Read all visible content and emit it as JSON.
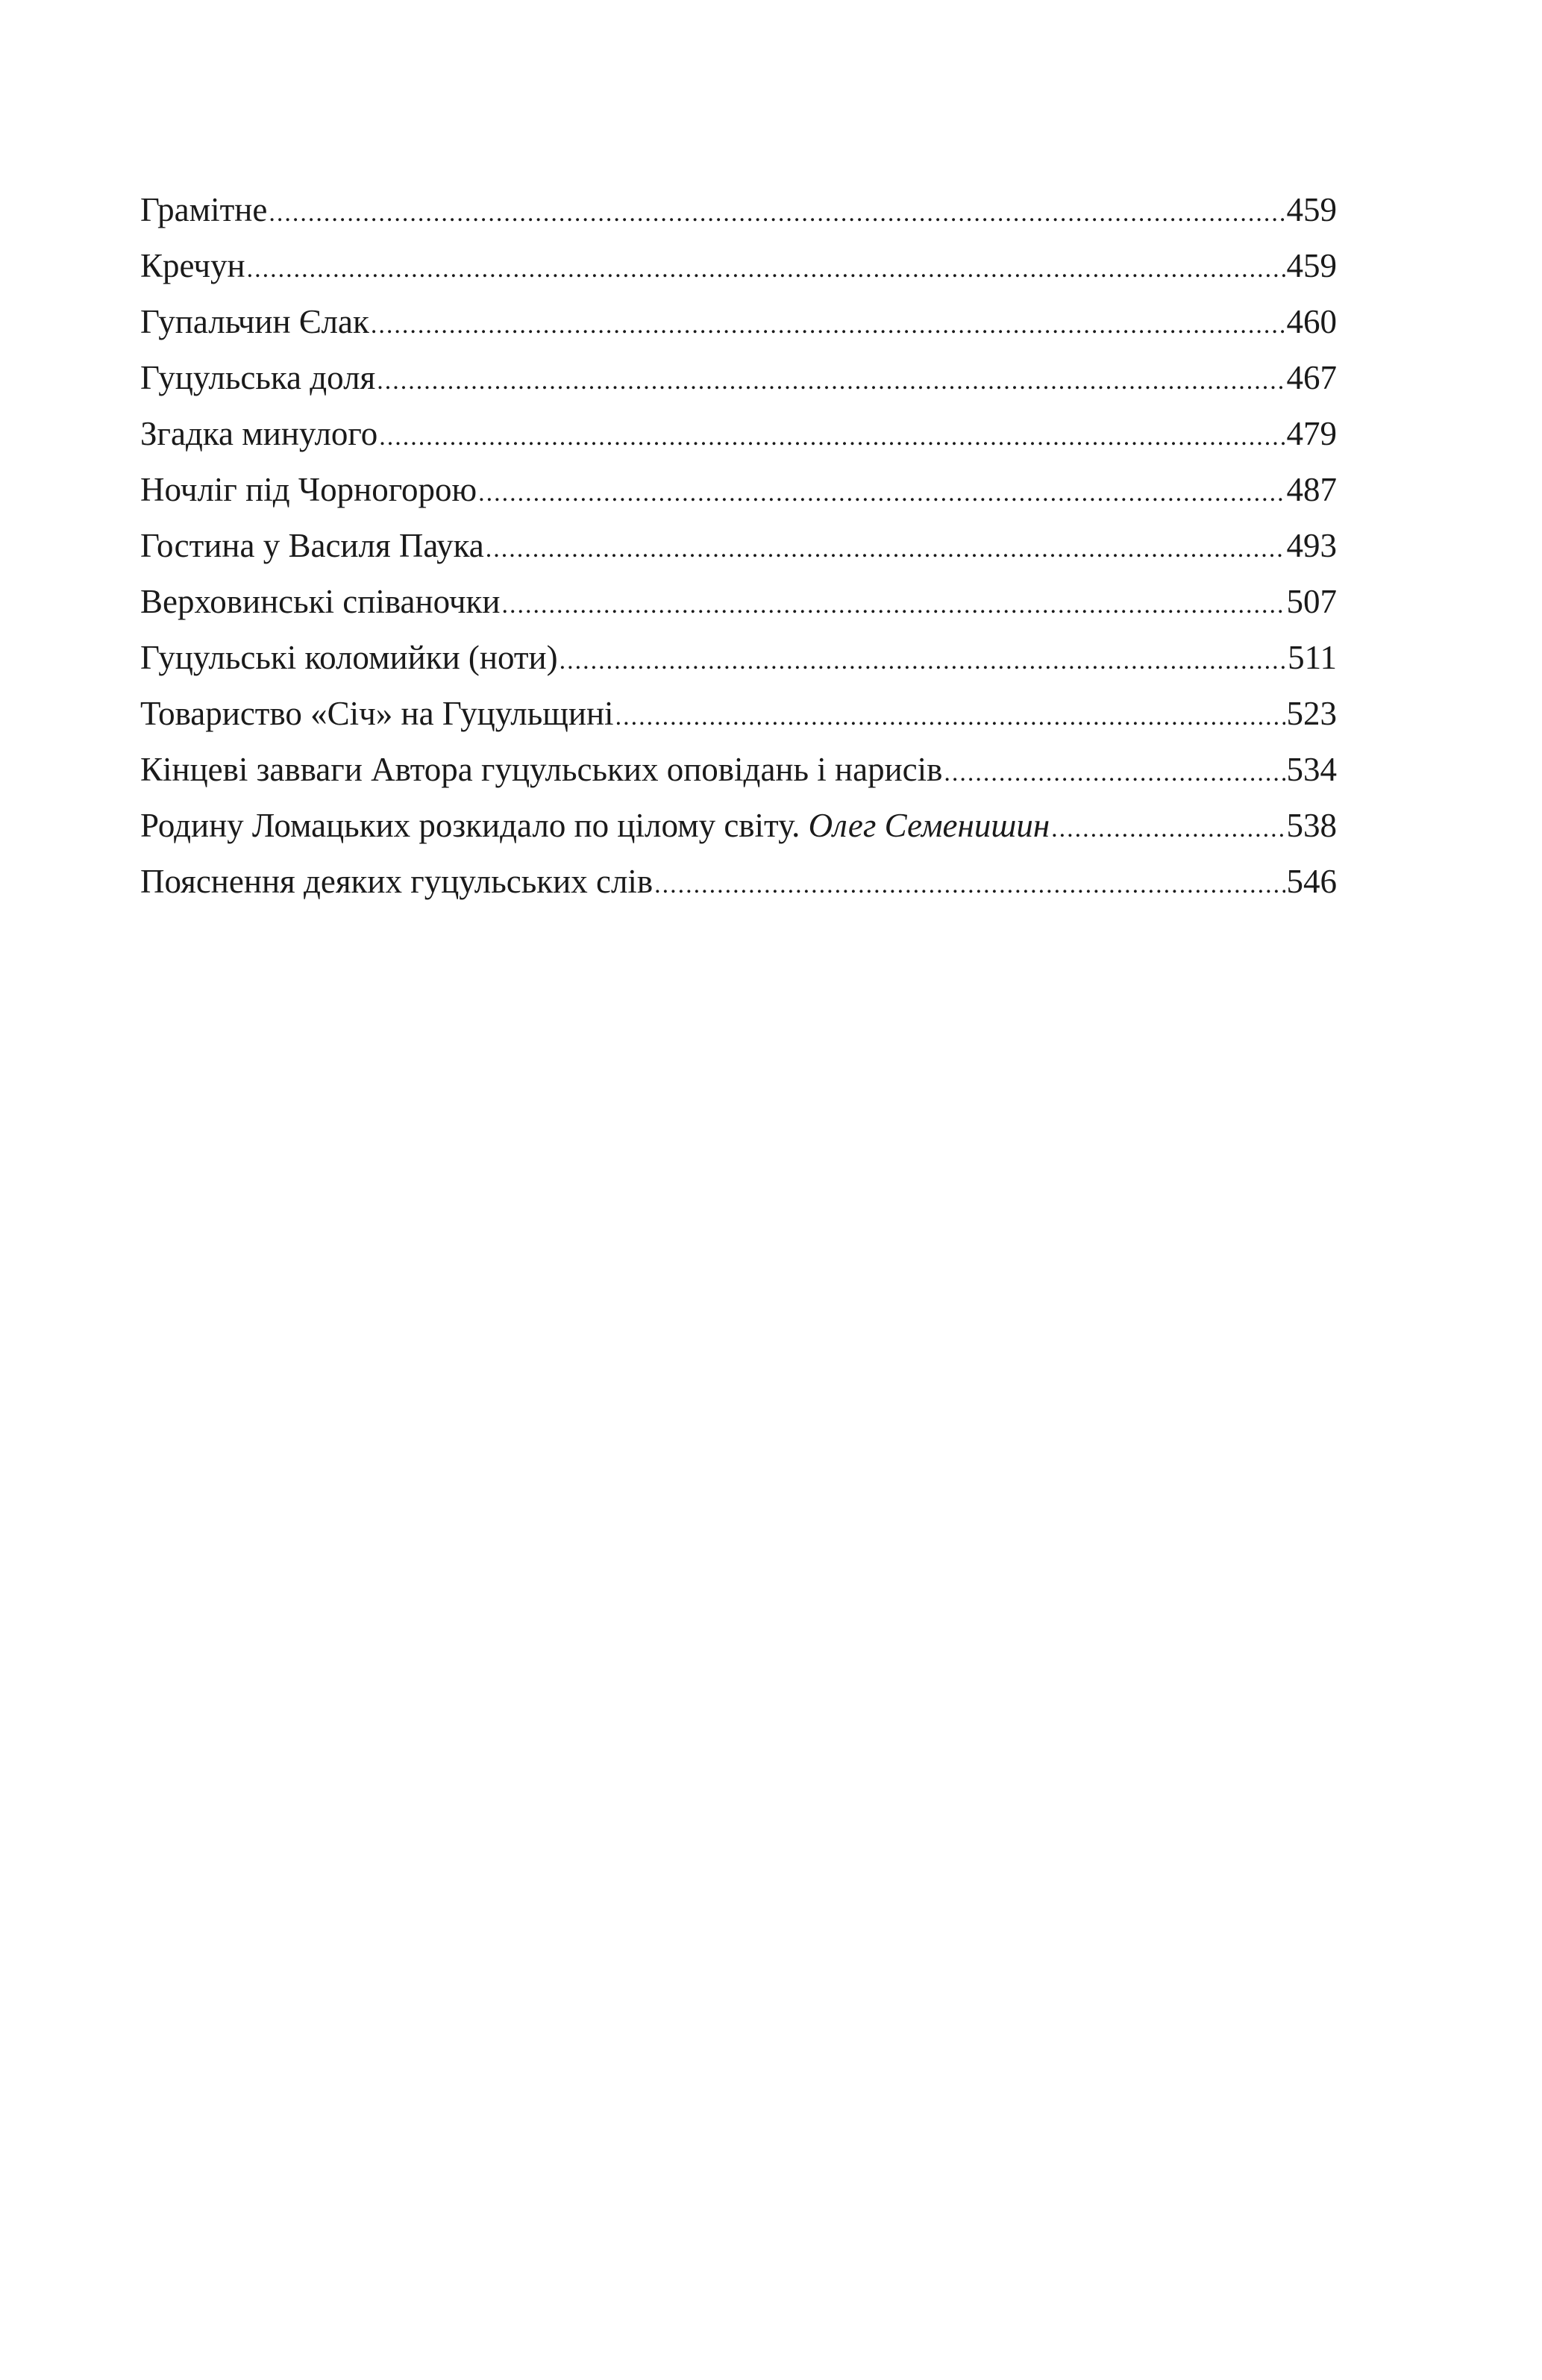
{
  "toc": {
    "entries": [
      {
        "title": "Грамітне",
        "author": "",
        "page": "459"
      },
      {
        "title": "Кречун",
        "author": "",
        "page": "459"
      },
      {
        "title": "Гупальчин Єлак",
        "author": "",
        "page": "460"
      },
      {
        "title": "Гуцульська доля",
        "author": "",
        "page": "467"
      },
      {
        "title": "Згадка минулого",
        "author": "",
        "page": "479"
      },
      {
        "title": "Ночліг під Чорногорою",
        "author": "",
        "page": "487"
      },
      {
        "title": "Гостина у Василя Паука",
        "author": "",
        "page": "493"
      },
      {
        "title": "Верховинські співаночки",
        "author": "",
        "page": "507"
      },
      {
        "title": "Гуцульські коломийки (ноти)",
        "author": "",
        "page": "511"
      },
      {
        "title": "Товариство «Січ» на Гуцульщині",
        "author": "",
        "page": "523"
      },
      {
        "title": "Кінцеві завваги Автора гуцульських оповідань і нарисів",
        "author": "",
        "page": "534"
      },
      {
        "title": "Родину Ломацьких розкидало по цілому світу. ",
        "author": "Олег Семенишин",
        "page": "538"
      },
      {
        "title": "Пояснення деяких гуцульських слів",
        "author": "",
        "page": "546"
      }
    ]
  }
}
